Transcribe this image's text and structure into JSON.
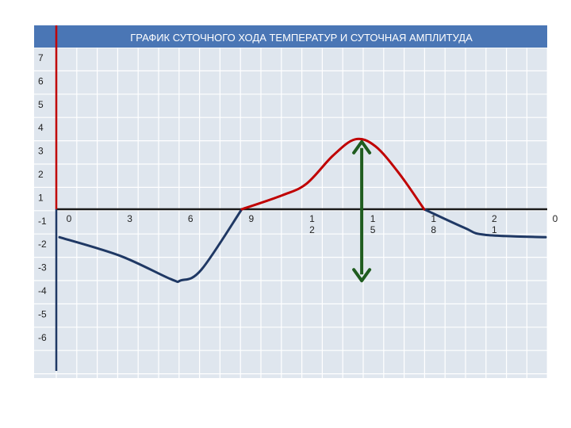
{
  "chart_data": {
    "type": "line",
    "title": "ГРАФИК СУТОЧНОГО ХОДА ТЕМПЕРАТУР И СУТОЧНАЯ АМПЛИТУДА",
    "xlabel": "",
    "ylabel": "",
    "grid": true,
    "y_tick_labels": [
      "7",
      "6",
      "5",
      "4",
      "3",
      "2",
      "1",
      "-1",
      "-2",
      "-3",
      "-4",
      "-5",
      "-6"
    ],
    "x_tick_labels": [
      {
        "x": 0,
        "lines": [
          "0"
        ]
      },
      {
        "x": 3,
        "lines": [
          "3"
        ]
      },
      {
        "x": 6,
        "lines": [
          "6"
        ]
      },
      {
        "x": 9,
        "lines": [
          "9"
        ]
      },
      {
        "x": 12,
        "lines": [
          "1",
          "2"
        ]
      },
      {
        "x": 15,
        "lines": [
          "1",
          "5"
        ]
      },
      {
        "x": 18,
        "lines": [
          "1",
          "8"
        ]
      },
      {
        "x": 21,
        "lines": [
          "2",
          "1"
        ]
      },
      {
        "x": 24,
        "lines": [
          "0"
        ]
      }
    ],
    "xlim": [
      0,
      24
    ],
    "series": [
      {
        "color": "#1f3864",
        "segment": "below-zero",
        "points": [
          [
            0,
            -1.2
          ],
          [
            3,
            -2.0
          ],
          [
            5.5,
            -3.0
          ],
          [
            6,
            -3.05
          ],
          [
            7,
            -2.6
          ],
          [
            9,
            0
          ],
          [
            18,
            0
          ],
          [
            20,
            -0.8
          ],
          [
            21,
            -1.1
          ],
          [
            24,
            -1.2
          ]
        ]
      },
      {
        "color": "#c00000",
        "segment": "above-zero",
        "points": [
          [
            9,
            0
          ],
          [
            11,
            0.6
          ],
          [
            12.2,
            1.1
          ],
          [
            13.5,
            2.3
          ],
          [
            14.6,
            3.0
          ],
          [
            15.6,
            2.7
          ],
          [
            16.8,
            1.5
          ],
          [
            18,
            0
          ]
        ]
      }
    ],
    "amplitude_arrow": {
      "x": 15,
      "y_top": 3.0,
      "y_bottom": -3.0,
      "color": "#1f5c1f"
    }
  },
  "colors": {
    "header": "#4a76b5",
    "grid_bg": "#dfe6ee",
    "grid_line": "#ffffff",
    "y_axis": "#c00000",
    "y_axis_lower": "#1f3864",
    "zero_line": "#1a1a1a"
  }
}
